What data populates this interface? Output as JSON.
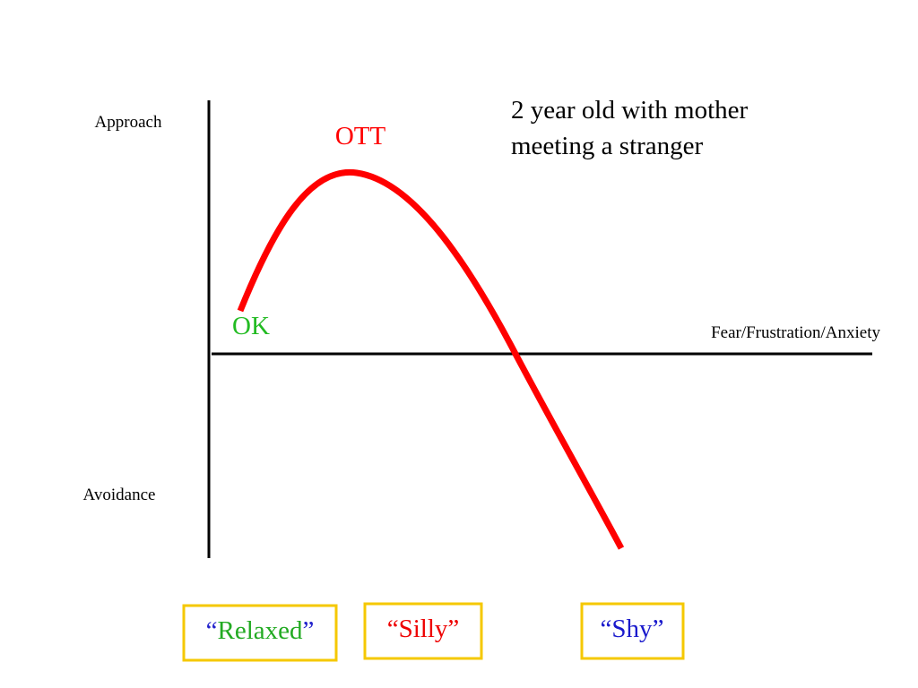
{
  "axes": {
    "approach": "Approach",
    "avoidance": "Avoidance",
    "x_label": "Fear/Frustration/Anxiety"
  },
  "title": {
    "lines": [
      "2 year old with mother",
      "meeting a stranger"
    ]
  },
  "curve_labels": {
    "peak": "OTT",
    "start": "OK"
  },
  "boxes": [
    {
      "open": "“",
      "text": "Relaxed",
      "close": "”"
    },
    {
      "open": "“",
      "text": "Silly",
      "close": "”"
    },
    {
      "open": "“",
      "text": "Shy",
      "close": "”"
    }
  ]
}
